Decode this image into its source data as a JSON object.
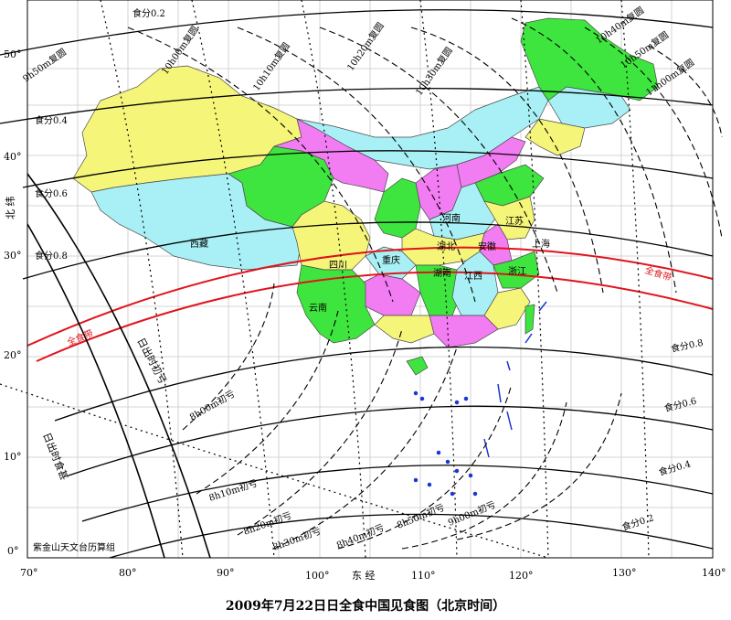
{
  "title": "2009年7月22日日全食中国见食图（北京时间）",
  "credit": "紫金山天文台历算组",
  "axes": {
    "x_label": "东  经",
    "y_label": "北  纬",
    "x_ticks": [
      "70°",
      "80°",
      "90°",
      "100°",
      "110°",
      "120°",
      "130°",
      "140°"
    ],
    "y_ticks": [
      "0°",
      "10°",
      "20°",
      "30°",
      "40°",
      "50°"
    ]
  },
  "bands": {
    "totality": "全食带",
    "sunrise_start": "日出时初亏",
    "sunrise_max": "日出时食甚"
  },
  "magnitude_north": [
    "食分0.2",
    "食分0.4",
    "食分0.6",
    "食分0.8"
  ],
  "magnitude_south": [
    "食分0.8",
    "食分0.6",
    "食分0.4",
    "食分0.2"
  ],
  "contact_times": [
    "8h00m初亏",
    "8h10m初亏",
    "8h20m初亏",
    "8h30m初亏",
    "8h40m初亏",
    "8h50m初亏",
    "9h00m初亏"
  ],
  "end_times": [
    "9h50m复圆",
    "10h00m复圆",
    "10h10m复圆",
    "10h20m复圆",
    "10h30m复圆",
    "10h40m复圆",
    "10h50m复圆",
    "11h00m复圆"
  ],
  "provinces": {
    "xizang": "西藏",
    "sichuan": "四川",
    "chongqing": "重庆",
    "yunnan": "云南",
    "hubei": "湖北",
    "henan": "河南",
    "anhui": "安徽",
    "jiangsu": "江苏",
    "shanghai": "上海",
    "hunan": "湖南",
    "jiangxi": "江西",
    "zhejiang": "浙江"
  },
  "colors": {
    "land_yellow": "#f5f57a",
    "land_cyan": "#a8f0f5",
    "land_green": "#3ee53e",
    "land_magenta": "#f27cf2",
    "totality_line": "#e0141c",
    "islands": "#1a36d6"
  }
}
